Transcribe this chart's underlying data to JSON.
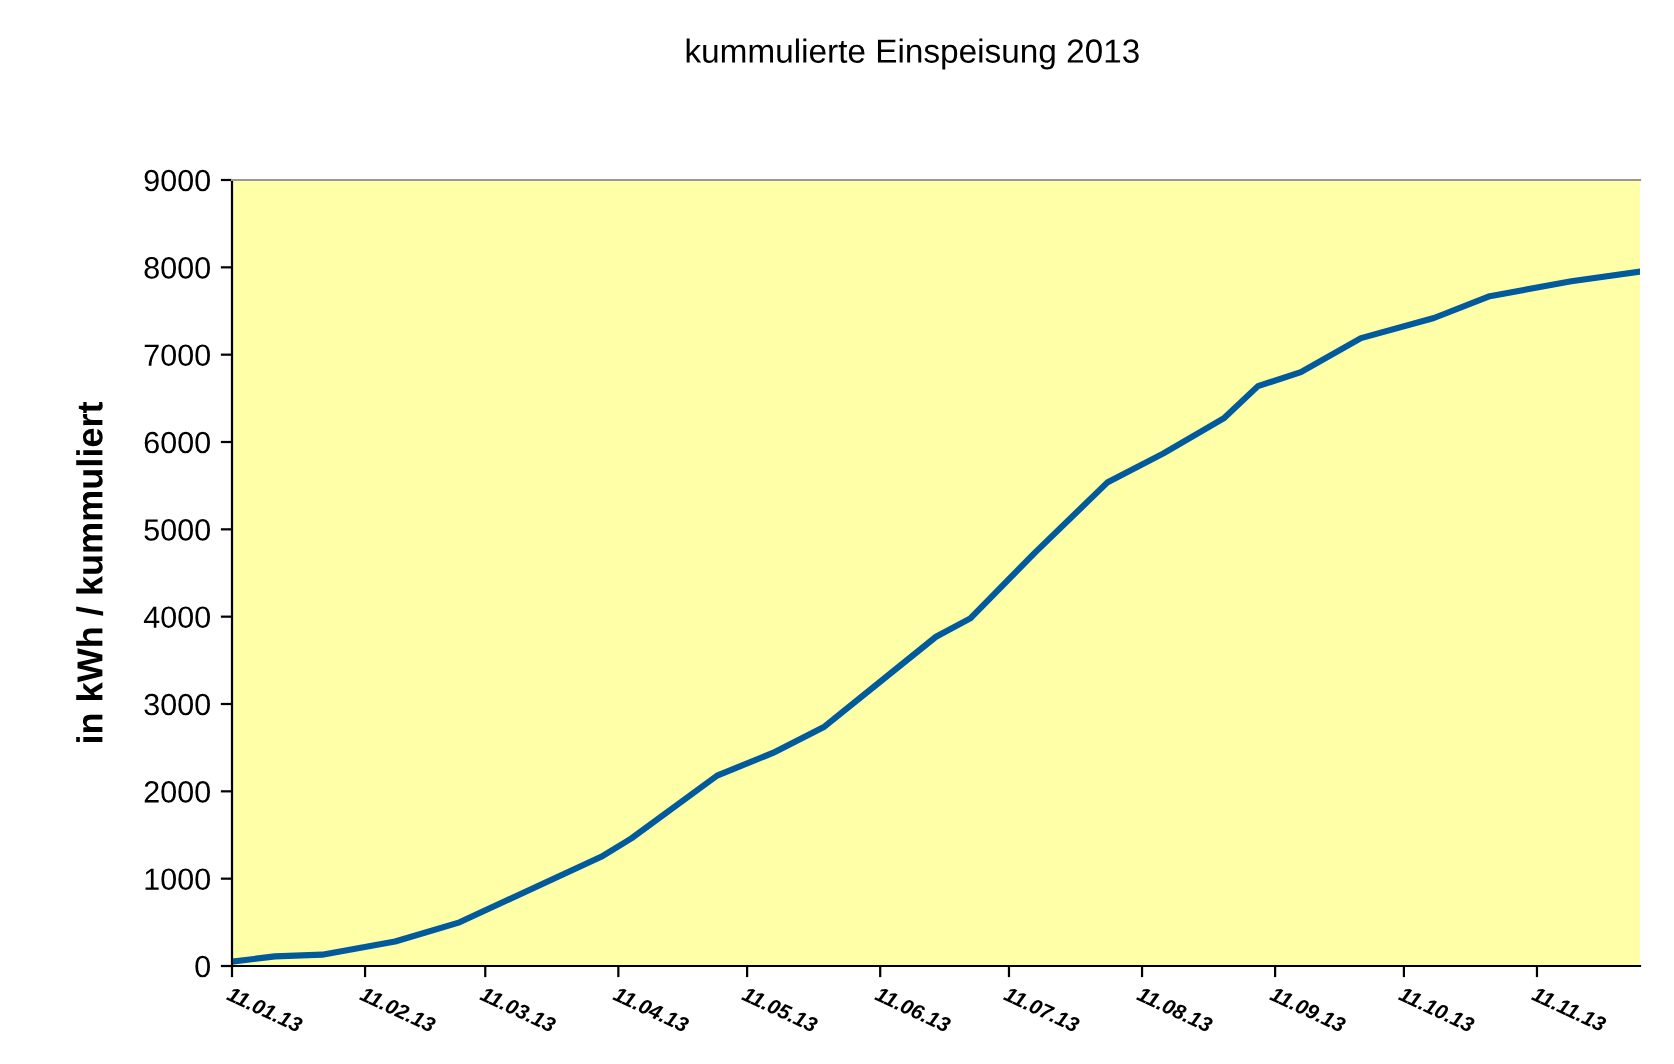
{
  "chart_data": {
    "type": "line",
    "title": "kummulierte Einspeisung 2013",
    "ylabel": "in kWh / kummuliert",
    "series": [
      {
        "color": "#005a9c",
        "x": [
          "2013-01-11",
          "2013-01-21",
          "2013-02-01",
          "2013-02-18",
          "2013-03-05",
          "2013-04-07",
          "2013-04-14",
          "2013-05-04",
          "2013-05-17",
          "2013-05-29",
          "2013-06-24",
          "2013-07-02",
          "2013-07-17",
          "2013-08-03",
          "2013-08-16",
          "2013-08-30",
          "2013-09-07",
          "2013-09-17",
          "2013-10-01",
          "2013-10-18",
          "2013-10-31",
          "2013-11-19",
          "2013-12-05"
        ],
        "values": [
          50,
          110,
          130,
          280,
          500,
          1250,
          1460,
          2180,
          2440,
          2740,
          3770,
          3980,
          4730,
          5540,
          5870,
          6270,
          6640,
          6800,
          7190,
          7420,
          7670,
          7840,
          7950
        ]
      }
    ],
    "xlim": [
      "2013-01-11",
      "2013-12-05"
    ],
    "xticks": [
      {
        "value": "2013-01-11",
        "label": "11.01.13"
      },
      {
        "value": "2013-02-11",
        "label": "11.02.13"
      },
      {
        "value": "2013-03-11",
        "label": "11.03.13"
      },
      {
        "value": "2013-04-11",
        "label": "11.04.13"
      },
      {
        "value": "2013-05-11",
        "label": "11.05.13"
      },
      {
        "value": "2013-06-11",
        "label": "11.06.13"
      },
      {
        "value": "2013-07-11",
        "label": "11.07.13"
      },
      {
        "value": "2013-08-11",
        "label": "11.08.13"
      },
      {
        "value": "2013-09-11",
        "label": "11.09.13"
      },
      {
        "value": "2013-10-11",
        "label": "11.10.13"
      },
      {
        "value": "2013-11-11",
        "label": "11.11.13"
      }
    ],
    "ylim": [
      0,
      9000
    ],
    "yticks": [
      0,
      1000,
      2000,
      3000,
      4000,
      5000,
      6000,
      7000,
      8000,
      9000
    ],
    "grid": false,
    "marker": "none",
    "line_style": "solid"
  }
}
